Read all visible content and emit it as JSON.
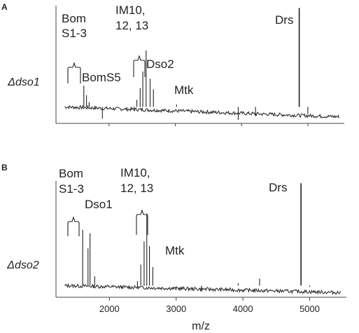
{
  "chart_data": [
    {
      "type": "line",
      "panel": "A",
      "ylabel": "Δdso1",
      "xlim": [
        1200,
        5550
      ],
      "ylim": [
        0,
        100
      ],
      "peaks": [
        {
          "x": 1550,
          "h": 14
        },
        {
          "x": 1620,
          "h": 32
        },
        {
          "x": 1660,
          "h": 24
        },
        {
          "x": 1700,
          "h": 18
        },
        {
          "x": 1900,
          "h": 4
        },
        {
          "x": 2380,
          "h": 11
        },
        {
          "x": 2420,
          "h": 20
        },
        {
          "x": 2470,
          "h": 30
        },
        {
          "x": 2510,
          "h": 44
        },
        {
          "x": 2560,
          "h": 62
        },
        {
          "x": 2620,
          "h": 38
        },
        {
          "x": 2670,
          "h": 29
        },
        {
          "x": 3020,
          "h": 16
        },
        {
          "x": 3950,
          "h": 3
        },
        {
          "x": 4210,
          "h": 6
        },
        {
          "x": 4870,
          "h": 98
        },
        {
          "x": 5000,
          "h": 8
        }
      ],
      "annotations": [
        {
          "lines": [
            "Bom",
            "S1-3"
          ]
        },
        {
          "lines": [
            "BomS5"
          ]
        },
        {
          "lines": [
            "IM10,",
            "12, 13"
          ]
        },
        {
          "lines": [
            "Dso2"
          ]
        },
        {
          "lines": [
            "Mtk"
          ]
        },
        {
          "lines": [
            "Drs"
          ]
        }
      ]
    },
    {
      "type": "line",
      "panel": "B",
      "ylabel": "Δdso2",
      "xlim": [
        1200,
        5550
      ],
      "ylim": [
        0,
        100
      ],
      "xlabel": "m/z",
      "xticks": [
        "2000",
        "3000",
        "4000",
        "5000"
      ],
      "xtick_values": [
        2000,
        3000,
        4000,
        5000
      ],
      "peaks": [
        {
          "x": 1600,
          "h": 58
        },
        {
          "x": 1680,
          "h": 42
        },
        {
          "x": 1710,
          "h": 55
        },
        {
          "x": 1780,
          "h": 18
        },
        {
          "x": 2420,
          "h": 14
        },
        {
          "x": 2470,
          "h": 28
        },
        {
          "x": 2520,
          "h": 48
        },
        {
          "x": 2560,
          "h": 72
        },
        {
          "x": 2600,
          "h": 44
        },
        {
          "x": 2650,
          "h": 26
        },
        {
          "x": 3050,
          "h": 10
        },
        {
          "x": 3380,
          "h": 5
        },
        {
          "x": 3930,
          "h": 12
        },
        {
          "x": 4250,
          "h": 16
        },
        {
          "x": 4870,
          "h": 98
        },
        {
          "x": 5000,
          "h": 9
        }
      ],
      "annotations": [
        {
          "lines": [
            "Bom",
            "S1-3"
          ]
        },
        {
          "lines": [
            "Dso1"
          ]
        },
        {
          "lines": [
            "IM10,",
            "12, 13"
          ]
        },
        {
          "lines": [
            "Mtk"
          ]
        },
        {
          "lines": [
            "Drs"
          ]
        }
      ]
    }
  ]
}
